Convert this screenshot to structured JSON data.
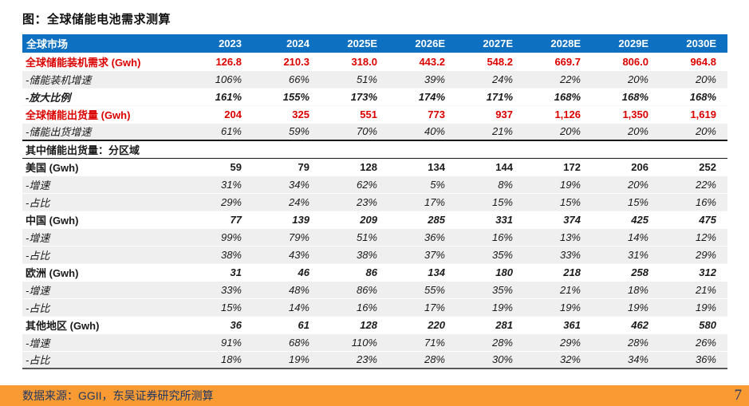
{
  "title": "图：全球储能电池需求测算",
  "colors": {
    "header_bg": "#0d70c0",
    "red_text": "#db0000",
    "stripe_gray": "#efefef",
    "footer_orange": "#f99a33",
    "footer_text": "#1f3864"
  },
  "table": {
    "corner_label": "全球市场",
    "columns": [
      "2023",
      "2024",
      "2025E",
      "2026E",
      "2027E",
      "2028E",
      "2029E",
      "2030E"
    ],
    "rows": [
      {
        "label": "全球储能装机需求 (Gwh)",
        "style": "red",
        "bg": "white",
        "values": [
          "126.8",
          "210.3",
          "318.0",
          "443.2",
          "548.2",
          "669.7",
          "806.0",
          "964.8"
        ]
      },
      {
        "label": "-储能装机增速",
        "style": "sub",
        "bg": "gray",
        "values": [
          "106%",
          "66%",
          "51%",
          "39%",
          "24%",
          "22%",
          "20%",
          "20%"
        ]
      },
      {
        "label": "-放大比例",
        "style": "sub-bold",
        "bg": "white",
        "values": [
          "161%",
          "155%",
          "173%",
          "174%",
          "171%",
          "168%",
          "168%",
          "168%"
        ]
      },
      {
        "label": "全球储能出货量 (Gwh)",
        "style": "red",
        "bg": "white",
        "values": [
          "204",
          "325",
          "551",
          "773",
          "937",
          "1,126",
          "1,350",
          "1,619"
        ]
      },
      {
        "label": "-储能出货增速",
        "style": "sub",
        "bg": "gray",
        "values": [
          "61%",
          "59%",
          "70%",
          "40%",
          "21%",
          "20%",
          "20%",
          "20%"
        ]
      },
      {
        "label": "其中储能出货量：分区域",
        "style": "section",
        "bg": "white",
        "values": []
      },
      {
        "label": "美国 (Gwh)",
        "style": "region",
        "bg": "white",
        "values": [
          "59",
          "79",
          "128",
          "134",
          "144",
          "172",
          "206",
          "252"
        ]
      },
      {
        "label": "-增速",
        "style": "sub",
        "bg": "gray",
        "values": [
          "31%",
          "34%",
          "62%",
          "5%",
          "8%",
          "19%",
          "20%",
          "22%"
        ]
      },
      {
        "label": "-占比",
        "style": "sub",
        "bg": "gray",
        "values": [
          "29%",
          "24%",
          "23%",
          "17%",
          "15%",
          "15%",
          "15%",
          "16%"
        ]
      },
      {
        "label": "中国 (Gwh)",
        "style": "region-italic",
        "bg": "white",
        "values": [
          "77",
          "139",
          "209",
          "285",
          "331",
          "374",
          "425",
          "475"
        ]
      },
      {
        "label": "-增速",
        "style": "sub",
        "bg": "gray",
        "values": [
          "99%",
          "79%",
          "51%",
          "36%",
          "16%",
          "13%",
          "14%",
          "12%"
        ]
      },
      {
        "label": "-占比",
        "style": "sub",
        "bg": "gray",
        "values": [
          "38%",
          "43%",
          "38%",
          "37%",
          "35%",
          "33%",
          "31%",
          "29%"
        ]
      },
      {
        "label": "欧洲 (Gwh)",
        "style": "region-italic",
        "bg": "white",
        "values": [
          "31",
          "46",
          "86",
          "134",
          "180",
          "218",
          "258",
          "312"
        ]
      },
      {
        "label": "-增速",
        "style": "sub",
        "bg": "gray",
        "values": [
          "33%",
          "48%",
          "86%",
          "55%",
          "35%",
          "21%",
          "18%",
          "21%"
        ]
      },
      {
        "label": "-占比",
        "style": "sub",
        "bg": "gray",
        "values": [
          "15%",
          "14%",
          "16%",
          "17%",
          "19%",
          "19%",
          "19%",
          "19%"
        ]
      },
      {
        "label": "其他地区 (Gwh)",
        "style": "region-italic",
        "bg": "white",
        "values": [
          "36",
          "61",
          "128",
          "220",
          "281",
          "361",
          "462",
          "580"
        ]
      },
      {
        "label": "-增速",
        "style": "sub",
        "bg": "gray",
        "values": [
          "91%",
          "68%",
          "110%",
          "71%",
          "28%",
          "29%",
          "28%",
          "26%"
        ]
      },
      {
        "label": "-占比",
        "style": "sub",
        "bg": "gray",
        "values": [
          "18%",
          "19%",
          "23%",
          "28%",
          "30%",
          "32%",
          "34%",
          "36%"
        ]
      }
    ]
  },
  "footer": {
    "source": "数据来源：GGII，东吴证券研究所测算",
    "page": "7"
  }
}
